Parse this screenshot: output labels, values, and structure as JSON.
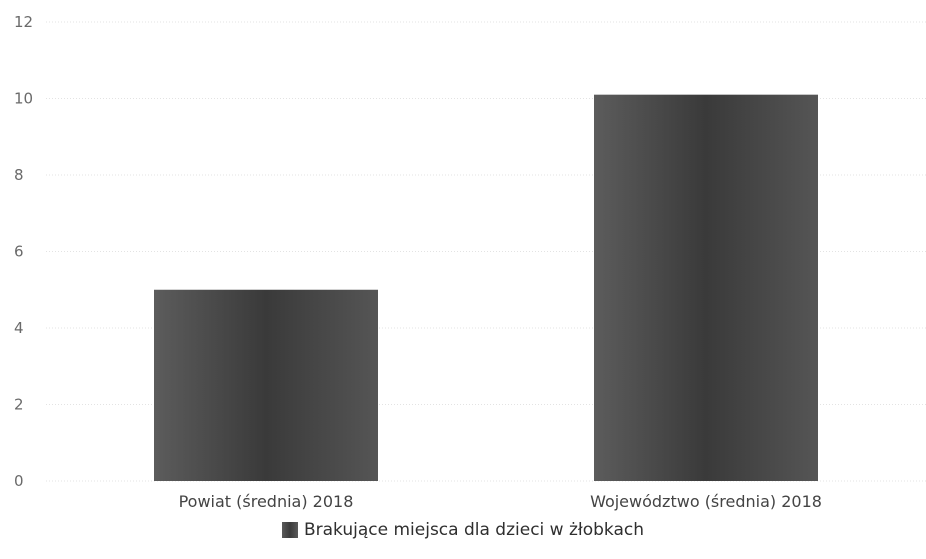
{
  "chart_data": {
    "type": "bar",
    "categories": [
      "Powiat (średnia) 2018",
      "Województwo (średnia) 2018"
    ],
    "series": [
      {
        "name": "Brakujące miejsca dla dzieci w żłobkach",
        "values": [
          5,
          10.1
        ]
      }
    ],
    "yticks": [
      "0",
      "2",
      "4",
      "6",
      "8",
      "10",
      "12"
    ],
    "ylim": [
      0,
      12
    ],
    "grid": true,
    "legend_position": "bottom",
    "bar_color": "#4a4a4a",
    "grid_color": "#e3e3e3"
  }
}
